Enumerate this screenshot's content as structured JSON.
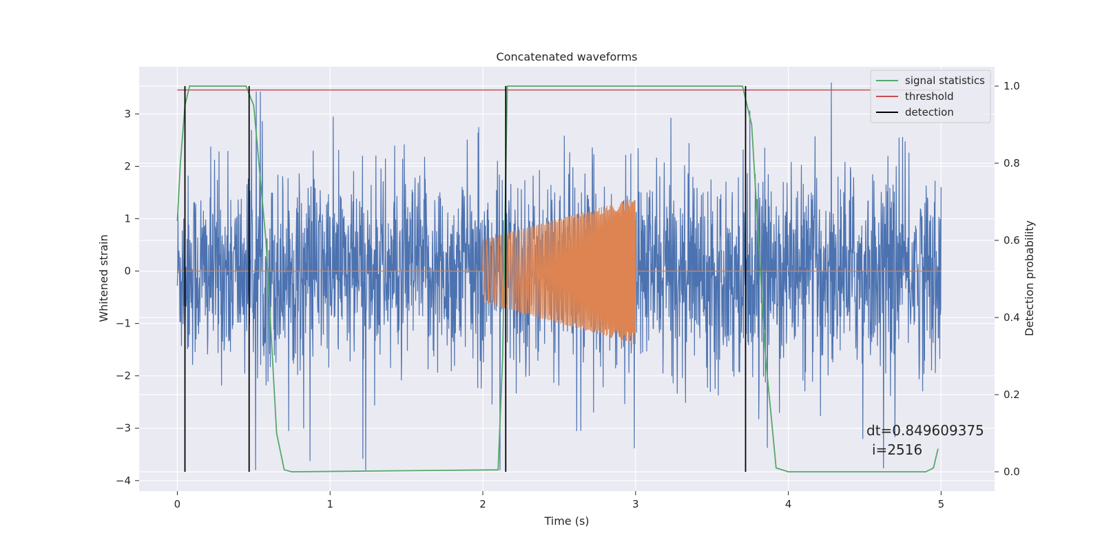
{
  "chart_data": {
    "type": "line",
    "title": "Concatenated waveforms",
    "xlabel": "Time (s)",
    "ylabel": "Whitened strain",
    "ylabel_right": "Detection probability",
    "xlim": [
      -0.25,
      5.35
    ],
    "ylim": [
      -4.2,
      3.9
    ],
    "ylim_right": [
      -0.05,
      1.05
    ],
    "xticks": [
      "0",
      "1",
      "2",
      "3",
      "4",
      "5"
    ],
    "yticks": [
      "−4",
      "−3",
      "−2",
      "−1",
      "0",
      "1",
      "2",
      "3"
    ],
    "yticks_right": [
      "0.0",
      "0.2",
      "0.4",
      "0.6",
      "0.8",
      "1.0"
    ],
    "grid": true,
    "legend_position": "top-right",
    "legend": [
      {
        "label": "signal statistics",
        "color": "#55a868"
      },
      {
        "label": "threshold",
        "color": "#c44e52"
      },
      {
        "label": "detection",
        "color": "#000000"
      }
    ],
    "series": [
      {
        "name": "",
        "axis": "left",
        "color": "#4c72b0",
        "kind": "noise",
        "x_range": [
          0,
          5
        ],
        "amplitude_range": [
          -3.8,
          3.6
        ]
      },
      {
        "name": "",
        "axis": "left",
        "color": "#dd8452",
        "kind": "chirp",
        "x_range": [
          2.0,
          3.0
        ],
        "amplitude_start": 0.6,
        "amplitude_end": 1.4
      },
      {
        "name": "signal statistics",
        "axis": "right",
        "color": "#55a868",
        "x": [
          0,
          0.02,
          0.05,
          0.08,
          0.45,
          0.5,
          0.58,
          0.65,
          0.7,
          0.75,
          2.1,
          2.13,
          2.16,
          2.2,
          3.7,
          3.76,
          3.85,
          3.92,
          4.0,
          4.9,
          4.95,
          4.98
        ],
        "values": [
          0.65,
          0.8,
          0.95,
          1.0,
          1.0,
          0.95,
          0.6,
          0.1,
          0.005,
          0.0,
          0.005,
          0.3,
          1.0,
          1.0,
          1.0,
          0.9,
          0.3,
          0.01,
          0.0,
          0.0,
          0.01,
          0.06
        ]
      },
      {
        "name": "threshold",
        "axis": "right",
        "color": "#c44e52",
        "x": [
          0,
          5
        ],
        "values": [
          0.99,
          0.99
        ]
      }
    ],
    "detections": [
      0.05,
      0.47,
      2.15,
      3.72
    ],
    "annotation": {
      "line1": "dt=0.849609375",
      "line2": "i=2516"
    }
  }
}
